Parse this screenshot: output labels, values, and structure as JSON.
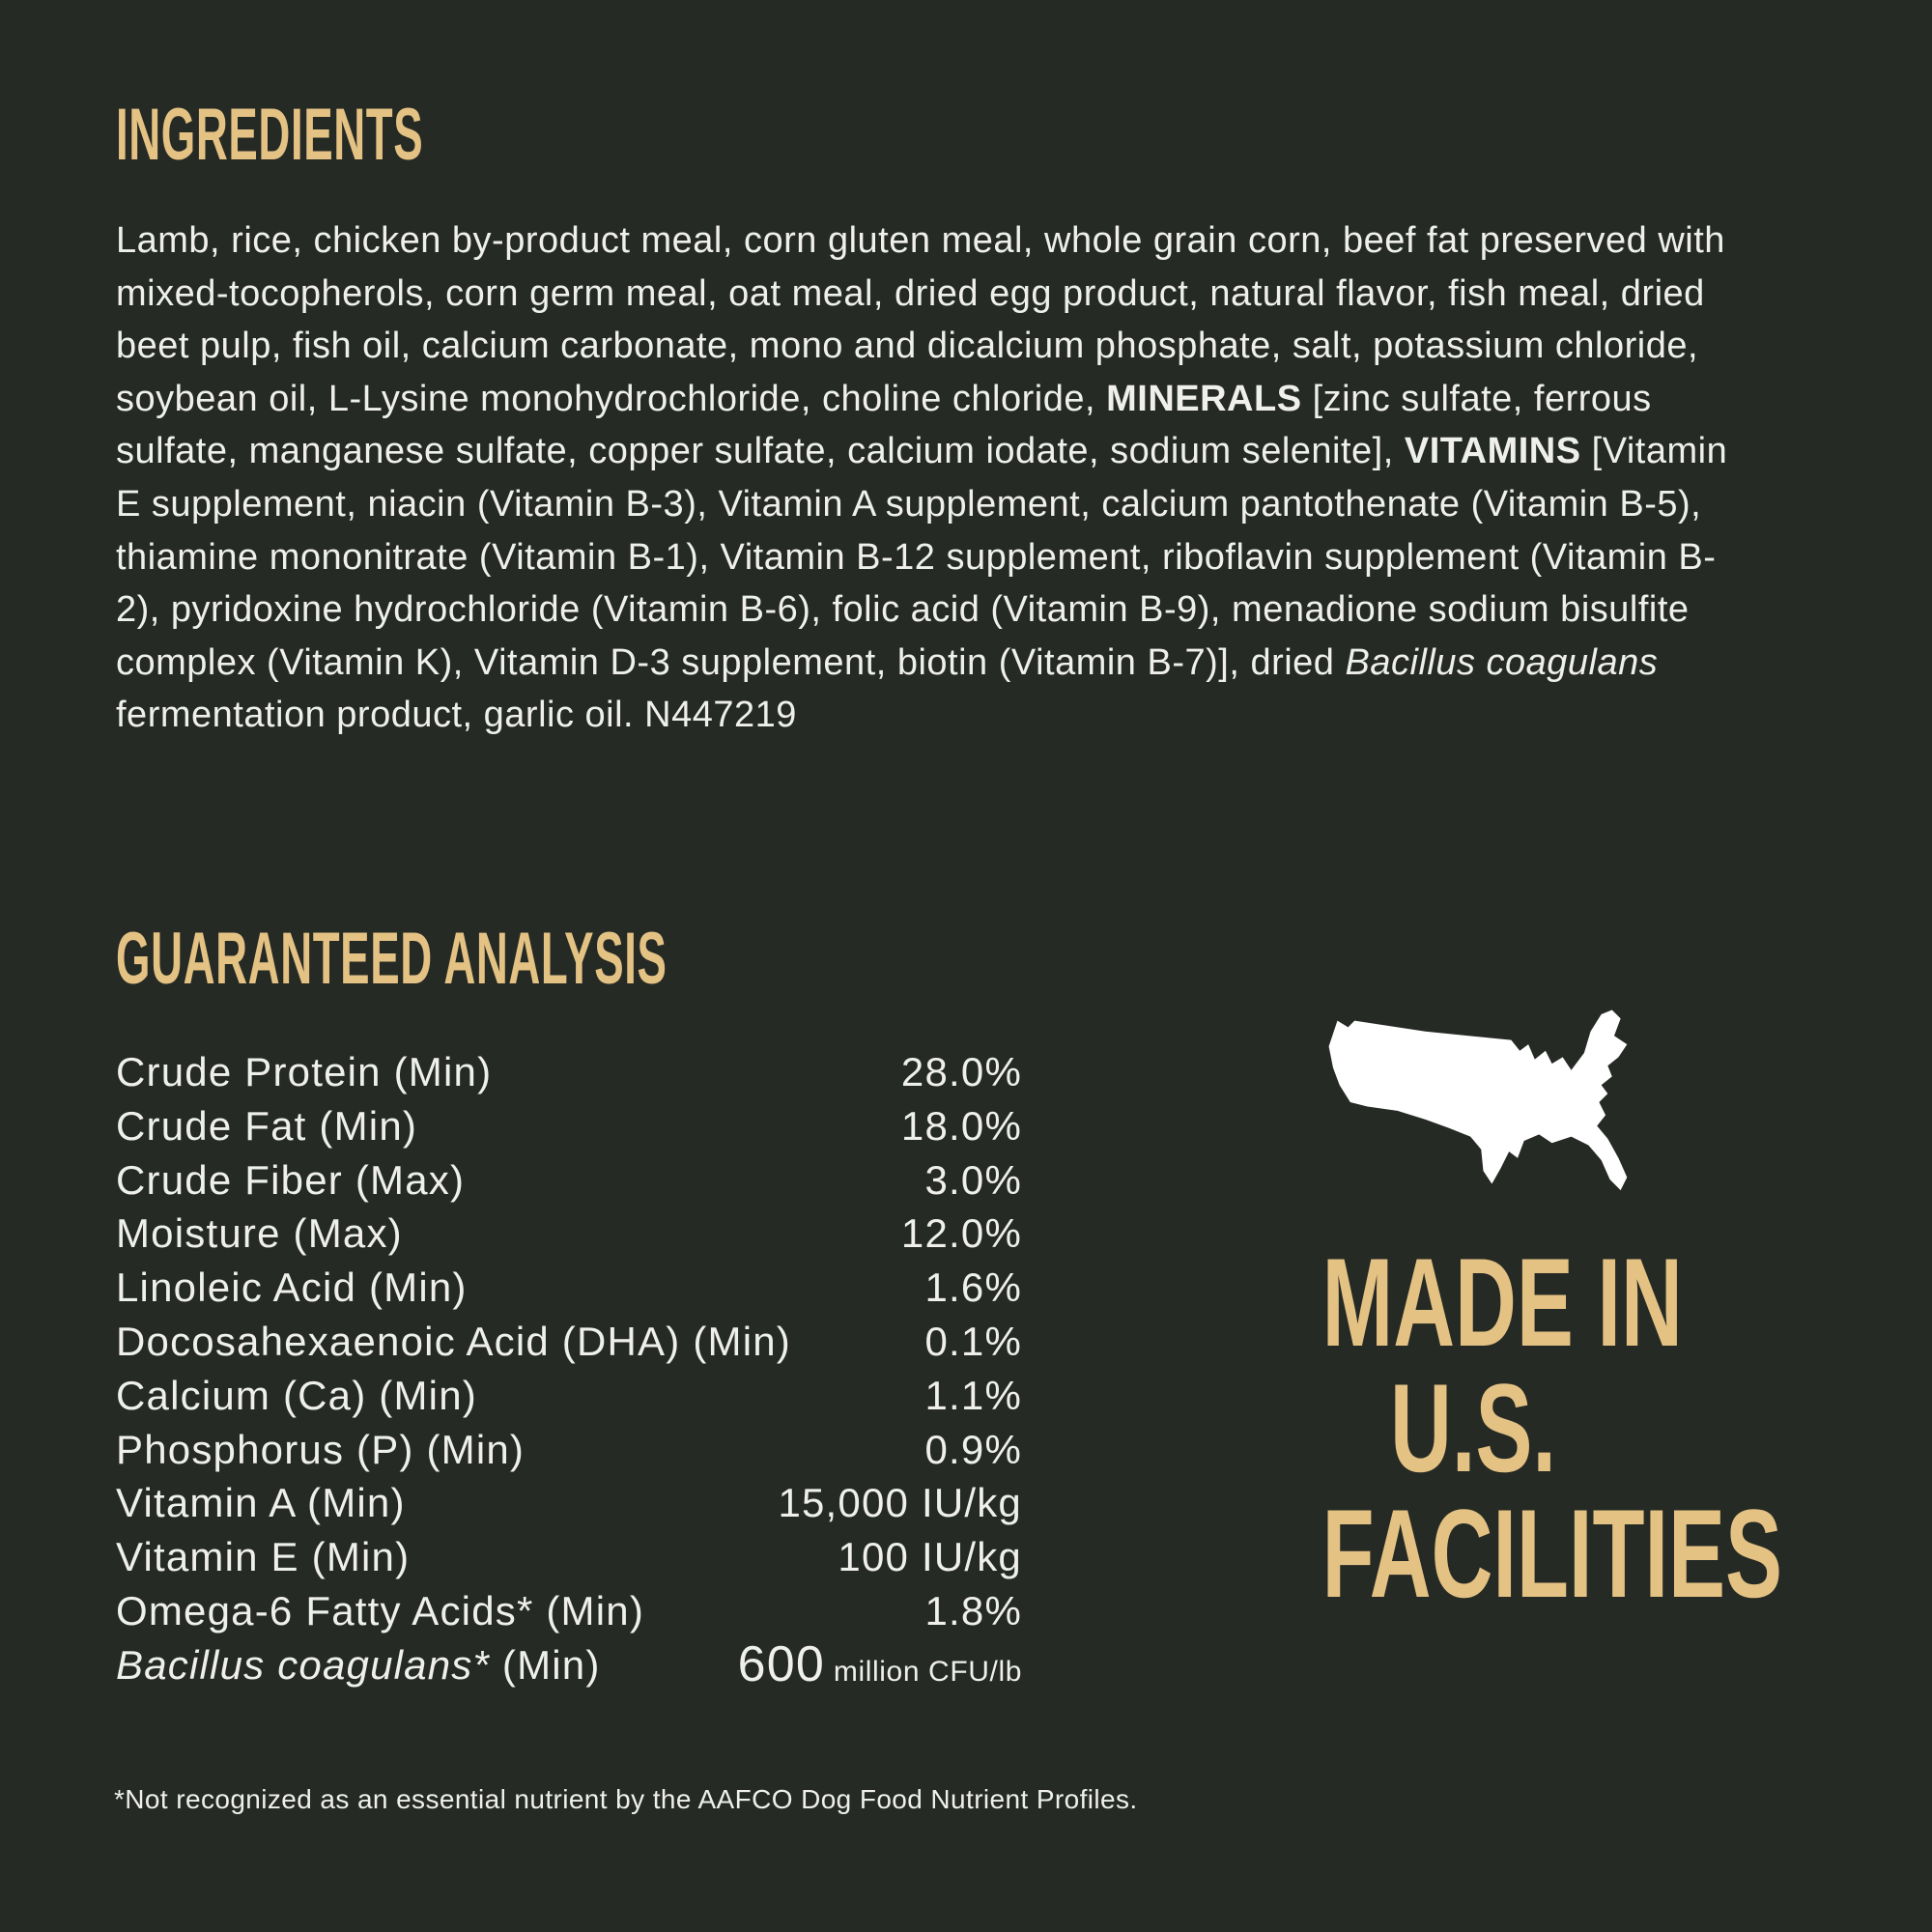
{
  "colors": {
    "background": "#262a25",
    "gold": "#e4c284",
    "text": "#eff0ec",
    "map": "#ffffff"
  },
  "ingredients": {
    "heading": "INGREDIENTS",
    "segments": [
      {
        "style": "normal",
        "text": "Lamb, rice, chicken by-product meal, corn gluten meal, whole grain corn, beef fat preserved with mixed-tocopherols, corn germ meal, oat meal, dried egg product, natural flavor, fish meal, dried beet pulp, fish oil, calcium carbonate, mono and dicalcium phosphate, salt, potassium chloride, soybean oil, L-Lysine monohydrochloride, choline chloride, "
      },
      {
        "style": "bold",
        "text": "MINERALS"
      },
      {
        "style": "normal",
        "text": " [zinc sulfate, ferrous sulfate, manganese sulfate, copper sulfate, calcium iodate, sodium selenite], "
      },
      {
        "style": "bold",
        "text": "VITAMINS"
      },
      {
        "style": "normal",
        "text": " [Vitamin E supplement, niacin (Vitamin B-3), Vitamin A supplement, calcium pantothenate (Vitamin B-5), thiamine mononitrate (Vitamin B-1), Vitamin B-12 supplement, riboflavin supplement (Vitamin B-2), pyridoxine hydrochloride (Vitamin B-6), folic acid (Vitamin B-9), menadione sodium bisulfite complex (Vitamin K), Vitamin D-3 supplement, biotin (Vitamin B-7)], dried "
      },
      {
        "style": "italic",
        "text": "Bacillus coagulans"
      },
      {
        "style": "normal",
        "text": " fermentation product, garlic oil. N447219"
      }
    ]
  },
  "guaranteed_analysis": {
    "heading": "GUARANTEED ANALYSIS",
    "rows": [
      {
        "label": [
          {
            "style": "normal",
            "text": "Crude Protein (Min)"
          }
        ],
        "value": [
          {
            "size": "normal",
            "text": "28.0%"
          }
        ]
      },
      {
        "label": [
          {
            "style": "normal",
            "text": "Crude Fat (Min)"
          }
        ],
        "value": [
          {
            "size": "normal",
            "text": "18.0%"
          }
        ]
      },
      {
        "label": [
          {
            "style": "normal",
            "text": "Crude Fiber (Max)"
          }
        ],
        "value": [
          {
            "size": "normal",
            "text": "3.0%"
          }
        ]
      },
      {
        "label": [
          {
            "style": "normal",
            "text": "Moisture (Max)"
          }
        ],
        "value": [
          {
            "size": "normal",
            "text": "12.0%"
          }
        ]
      },
      {
        "label": [
          {
            "style": "normal",
            "text": "Linoleic Acid (Min)"
          }
        ],
        "value": [
          {
            "size": "normal",
            "text": "1.6%"
          }
        ]
      },
      {
        "label": [
          {
            "style": "normal",
            "text": "Docosahexaenoic Acid (DHA) (Min)"
          }
        ],
        "value": [
          {
            "size": "normal",
            "text": "0.1%"
          }
        ]
      },
      {
        "label": [
          {
            "style": "normal",
            "text": "Calcium (Ca) (Min)"
          }
        ],
        "value": [
          {
            "size": "normal",
            "text": "1.1%"
          }
        ]
      },
      {
        "label": [
          {
            "style": "normal",
            "text": "Phosphorus (P) (Min)"
          }
        ],
        "value": [
          {
            "size": "normal",
            "text": "0.9%"
          }
        ]
      },
      {
        "label": [
          {
            "style": "normal",
            "text": "Vitamin A (Min)"
          }
        ],
        "value": [
          {
            "size": "normal",
            "text": "15,000 IU/kg"
          }
        ]
      },
      {
        "label": [
          {
            "style": "normal",
            "text": "Vitamin E (Min)"
          }
        ],
        "value": [
          {
            "size": "normal",
            "text": "100 IU/kg"
          }
        ]
      },
      {
        "label": [
          {
            "style": "normal",
            "text": "Omega-6 Fatty Acids* (Min)"
          }
        ],
        "value": [
          {
            "size": "normal",
            "text": "1.8%"
          }
        ]
      },
      {
        "label": [
          {
            "style": "italic",
            "text": "Bacillus coagulans*"
          },
          {
            "style": "normal",
            "text": " (Min)"
          }
        ],
        "value": [
          {
            "size": "big",
            "text": "600"
          },
          {
            "size": "small",
            "text": " million CFU/lb"
          }
        ]
      }
    ]
  },
  "made_in": {
    "lines": [
      "MADE IN",
      "U.S.",
      "FACILITIES"
    ]
  },
  "footnote": "*Not recognized as an essential nutrient by the AAFCO Dog Food Nutrient Profiles."
}
